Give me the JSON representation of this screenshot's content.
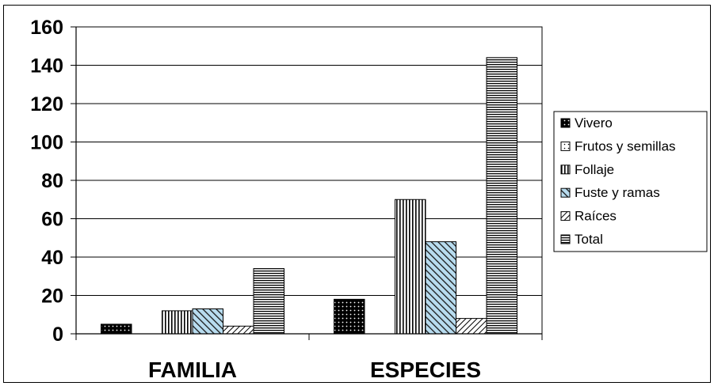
{
  "chart_data": {
    "type": "bar",
    "categories": [
      "FAMILIA",
      "ESPECIES"
    ],
    "series": [
      {
        "name": "Vivero",
        "values": [
          5,
          18
        ],
        "pattern": "dots-dark"
      },
      {
        "name": "Frutos y semillas",
        "values": [
          0,
          0
        ],
        "pattern": "dots-light"
      },
      {
        "name": "Follaje",
        "values": [
          12,
          70
        ],
        "pattern": "vertical"
      },
      {
        "name": "Fuste y ramas",
        "values": [
          13,
          48
        ],
        "pattern": "diag-up"
      },
      {
        "name": "Raíces",
        "values": [
          4,
          8
        ],
        "pattern": "diag-down"
      },
      {
        "name": "Total",
        "values": [
          34,
          144
        ],
        "pattern": "horizontal"
      }
    ],
    "ylim": [
      0,
      160
    ],
    "yticks": [
      "0",
      "20",
      "40",
      "60",
      "80",
      "100",
      "120",
      "140",
      "160"
    ],
    "grid": true,
    "legend": "right",
    "title": "",
    "xlabel": "",
    "ylabel": ""
  }
}
